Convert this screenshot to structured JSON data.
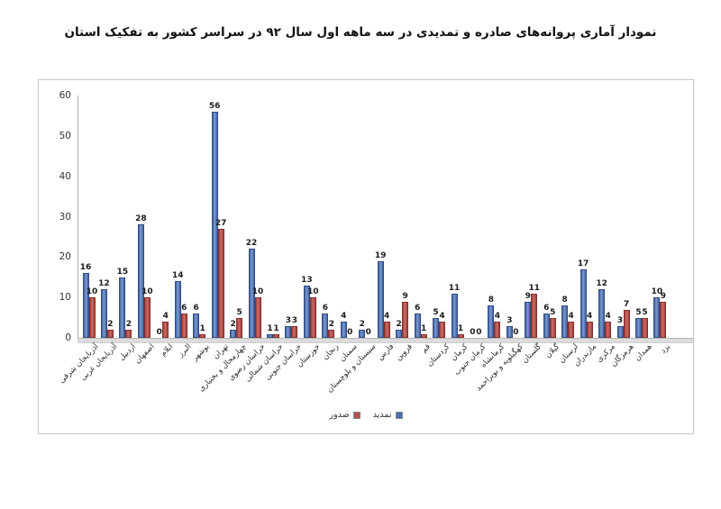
{
  "title": "نمودار آماری پروانه‌های صادره و تمدیدی در سه ماهه اول سال ۹۲ در سراسر کشور به تفکیک استان",
  "colors": {
    "renew_fill_dark": "#41619f",
    "renew_fill_light": "#7b99cf",
    "renew_border": "#2f4c82",
    "issue_fill_dark": "#a03e3b",
    "issue_fill_light": "#cd6c66",
    "issue_border": "#83312f",
    "axis_line": "#a8a8a8",
    "tick_text": "#333333",
    "value_text": "#1c1c1c"
  },
  "chart_data": {
    "type": "bar",
    "title": "نمودار آماری پروانه‌های صادره و تمدیدی در سه ماهه اول سال ۹۲ در سراسر کشور به تفکیک استان",
    "xlabel": "",
    "ylabel": "",
    "ylim": [
      0,
      60
    ],
    "yticks": [
      0,
      10,
      20,
      30,
      40,
      50,
      60
    ],
    "grid": false,
    "legend_position": "bottom-center",
    "categories": [
      "آذربایجان شرقی",
      "آذربایجان غربی",
      "اردبیل",
      "اصفهان",
      "ایلام",
      "البرز",
      "بوشهر",
      "تهران",
      "چهارمحال و بختیاری",
      "خراسان رضوی",
      "خراسان شمالی",
      "خراسان جنوبی",
      "خوزستان",
      "زنجان",
      "سمنان",
      "سیستان و بلوچستان",
      "فارس",
      "قزوین",
      "قم",
      "کردستان",
      "کرمان",
      "کرمان جنوب",
      "کرمانشاه",
      "کهگیلویه و بویراحمد",
      "گلستان",
      "گیلان",
      "لرستان",
      "مازندران",
      "مرکزی",
      "هرمزگان",
      "همدان",
      "یزد"
    ],
    "series": [
      {
        "name": "تمدید",
        "color": "#4f6fae",
        "values": [
          16,
          12,
          15,
          28,
          0,
          14,
          6,
          56,
          2,
          22,
          1,
          3,
          13,
          6,
          4,
          2,
          19,
          2,
          6,
          5,
          11,
          0,
          8,
          3,
          9,
          6,
          8,
          17,
          12,
          3,
          5,
          10
        ]
      },
      {
        "name": "صدور",
        "color": "#b5504c",
        "values": [
          10,
          2,
          2,
          10,
          4,
          6,
          1,
          27,
          5,
          10,
          1,
          3,
          10,
          2,
          0,
          0,
          4,
          9,
          1,
          4,
          1,
          0,
          4,
          0,
          11,
          5,
          4,
          4,
          4,
          7,
          5,
          9
        ]
      }
    ]
  }
}
